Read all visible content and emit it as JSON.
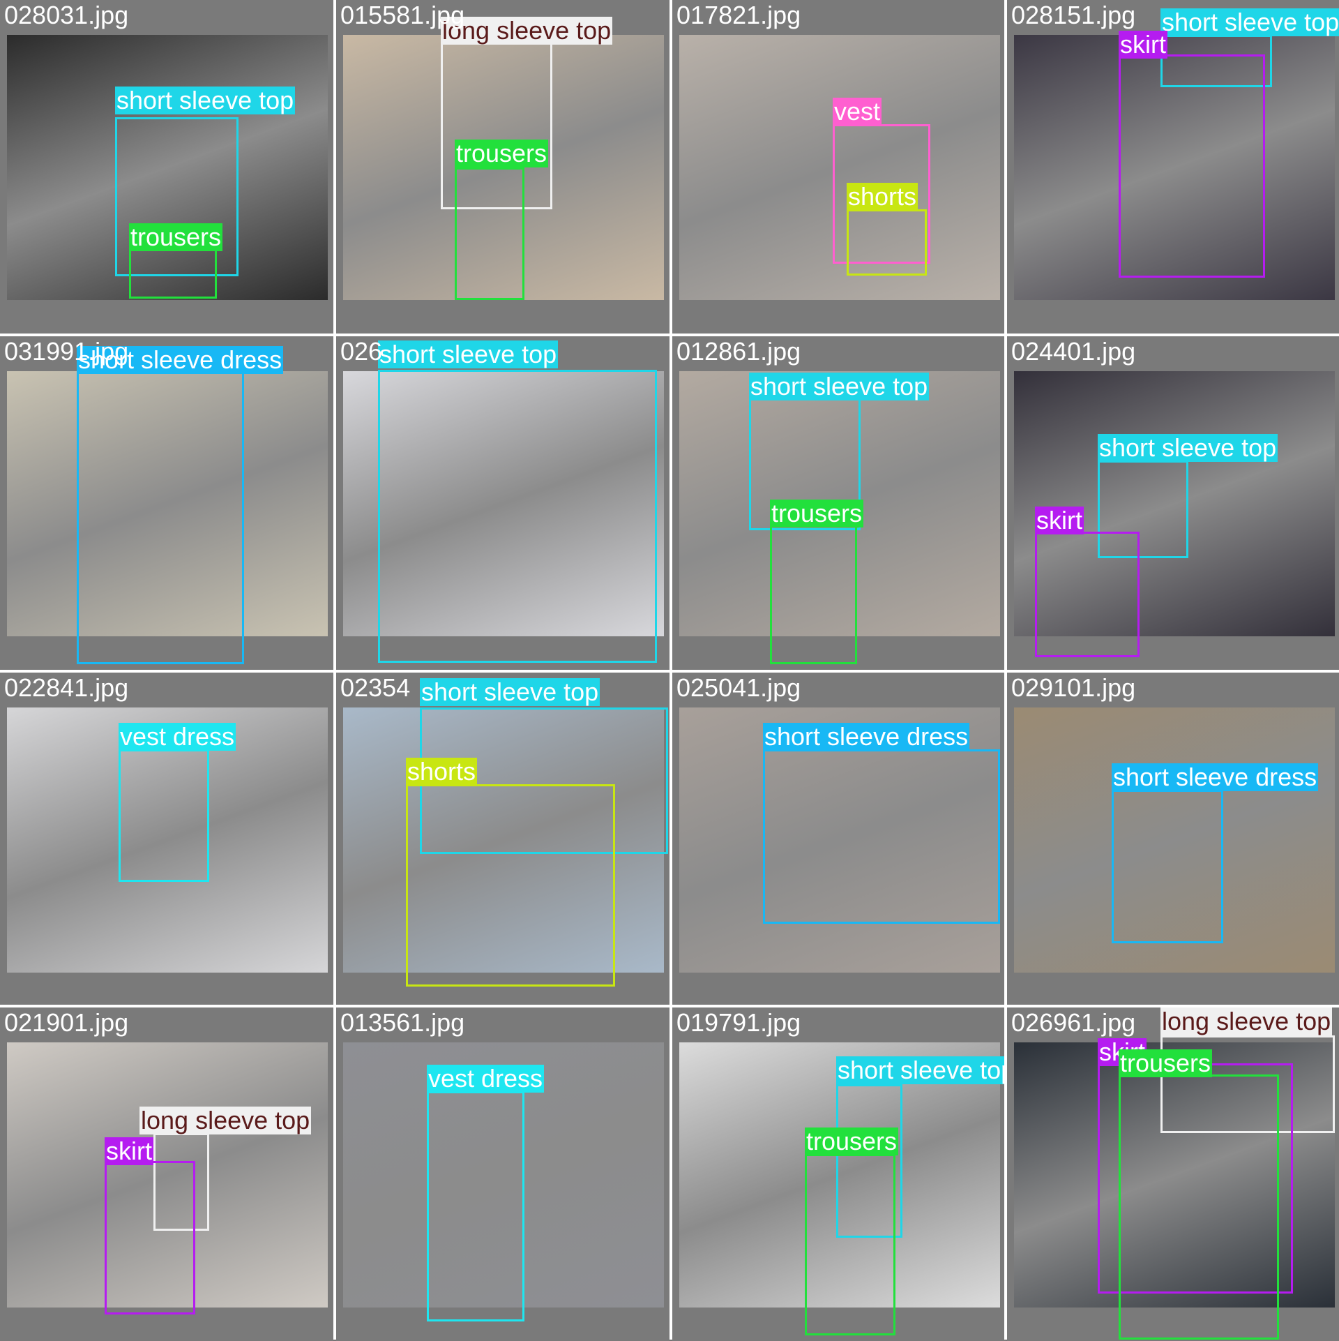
{
  "colors": {
    "short sleeve top": "#1fd6e8",
    "long sleeve top": "#f0f0f0",
    "trousers": "#22e03c",
    "shorts": "#c8e612",
    "skirt": "#b51cf0",
    "vest": "#ff5fd0",
    "vest dress": "#1ee6f0",
    "short sleeve dress": "#18b8f5"
  },
  "cells": [
    {
      "file": "028031.jpg",
      "bg": "#2b2b2b",
      "labels": [
        {
          "text": "short sleeve top",
          "cls": "short sleeve top"
        },
        {
          "text": "trousers",
          "cls": "trousers"
        }
      ]
    },
    {
      "file": "015581.jpg",
      "bg": "#c9b9a4",
      "labels": [
        {
          "text": "long sleeve top",
          "cls": "long sleeve top"
        },
        {
          "text": "trousers",
          "cls": "trousers"
        }
      ]
    },
    {
      "file": "017821.jpg",
      "bg": "#b9b1a9",
      "labels": [
        {
          "text": "vest",
          "cls": "vest"
        },
        {
          "text": "shorts",
          "cls": "shorts"
        }
      ]
    },
    {
      "file": "028151.jpg",
      "bg": "#3b3743",
      "labels": [
        {
          "text": "short sleeve top",
          "cls": "short sleeve top"
        },
        {
          "text": "skirt",
          "cls": "skirt"
        }
      ]
    },
    {
      "file": "031991.jpg",
      "bg": "#c9c3b2",
      "labels": [
        {
          "text": "short sleeve dress",
          "cls": "short sleeve dress"
        }
      ]
    },
    {
      "file": "026",
      "bg": "#d8d8dc",
      "labels": [
        {
          "text": "short sleeve top",
          "cls": "short sleeve top"
        }
      ]
    },
    {
      "file": "012861.jpg",
      "bg": "#b3aaa1",
      "labels": [
        {
          "text": "short sleeve top",
          "cls": "short sleeve top"
        },
        {
          "text": "trousers",
          "cls": "trousers"
        }
      ]
    },
    {
      "file": "024401.jpg",
      "bg": "#33303a",
      "labels": [
        {
          "text": "short sleeve top",
          "cls": "short sleeve top"
        },
        {
          "text": "skirt",
          "cls": "skirt"
        }
      ]
    },
    {
      "file": "022841.jpg",
      "bg": "#d6d6d8",
      "labels": [
        {
          "text": "vest dress",
          "cls": "vest dress"
        }
      ]
    },
    {
      "file": "02354",
      "bg": "#a9b9c9",
      "labels": [
        {
          "text": "short sleeve top",
          "cls": "short sleeve top"
        },
        {
          "text": "shorts",
          "cls": "shorts"
        }
      ]
    },
    {
      "file": "025041.jpg",
      "bg": "#a8a09a",
      "labels": [
        {
          "text": "short sleeve dress",
          "cls": "short sleeve dress"
        }
      ]
    },
    {
      "file": "029101.jpg",
      "bg": "#9b8b73",
      "labels": [
        {
          "text": "short sleeve dress",
          "cls": "short sleeve dress"
        }
      ]
    },
    {
      "file": "021901.jpg",
      "bg": "#cfcac4",
      "labels": [
        {
          "text": "long sleeve top",
          "cls": "long sleeve top"
        },
        {
          "text": "skirt",
          "cls": "skirt"
        }
      ]
    },
    {
      "file": "013561.jpg",
      "bg": "#8e8f94",
      "labels": [
        {
          "text": "vest dress",
          "cls": "vest dress"
        }
      ]
    },
    {
      "file": "019791.jpg",
      "bg": "#dcdcdc",
      "labels": [
        {
          "text": "short sleeve top",
          "cls": "short sleeve top"
        },
        {
          "text": "trousers",
          "cls": "trousers"
        }
      ]
    },
    {
      "file": "026961.jpg",
      "bg": "#2a3038",
      "labels": [
        {
          "text": "long sleeve top",
          "cls": "long sleeve top"
        },
        {
          "text": "skirt",
          "cls": "skirt"
        },
        {
          "text": "trousers",
          "cls": "trousers"
        }
      ]
    }
  ]
}
